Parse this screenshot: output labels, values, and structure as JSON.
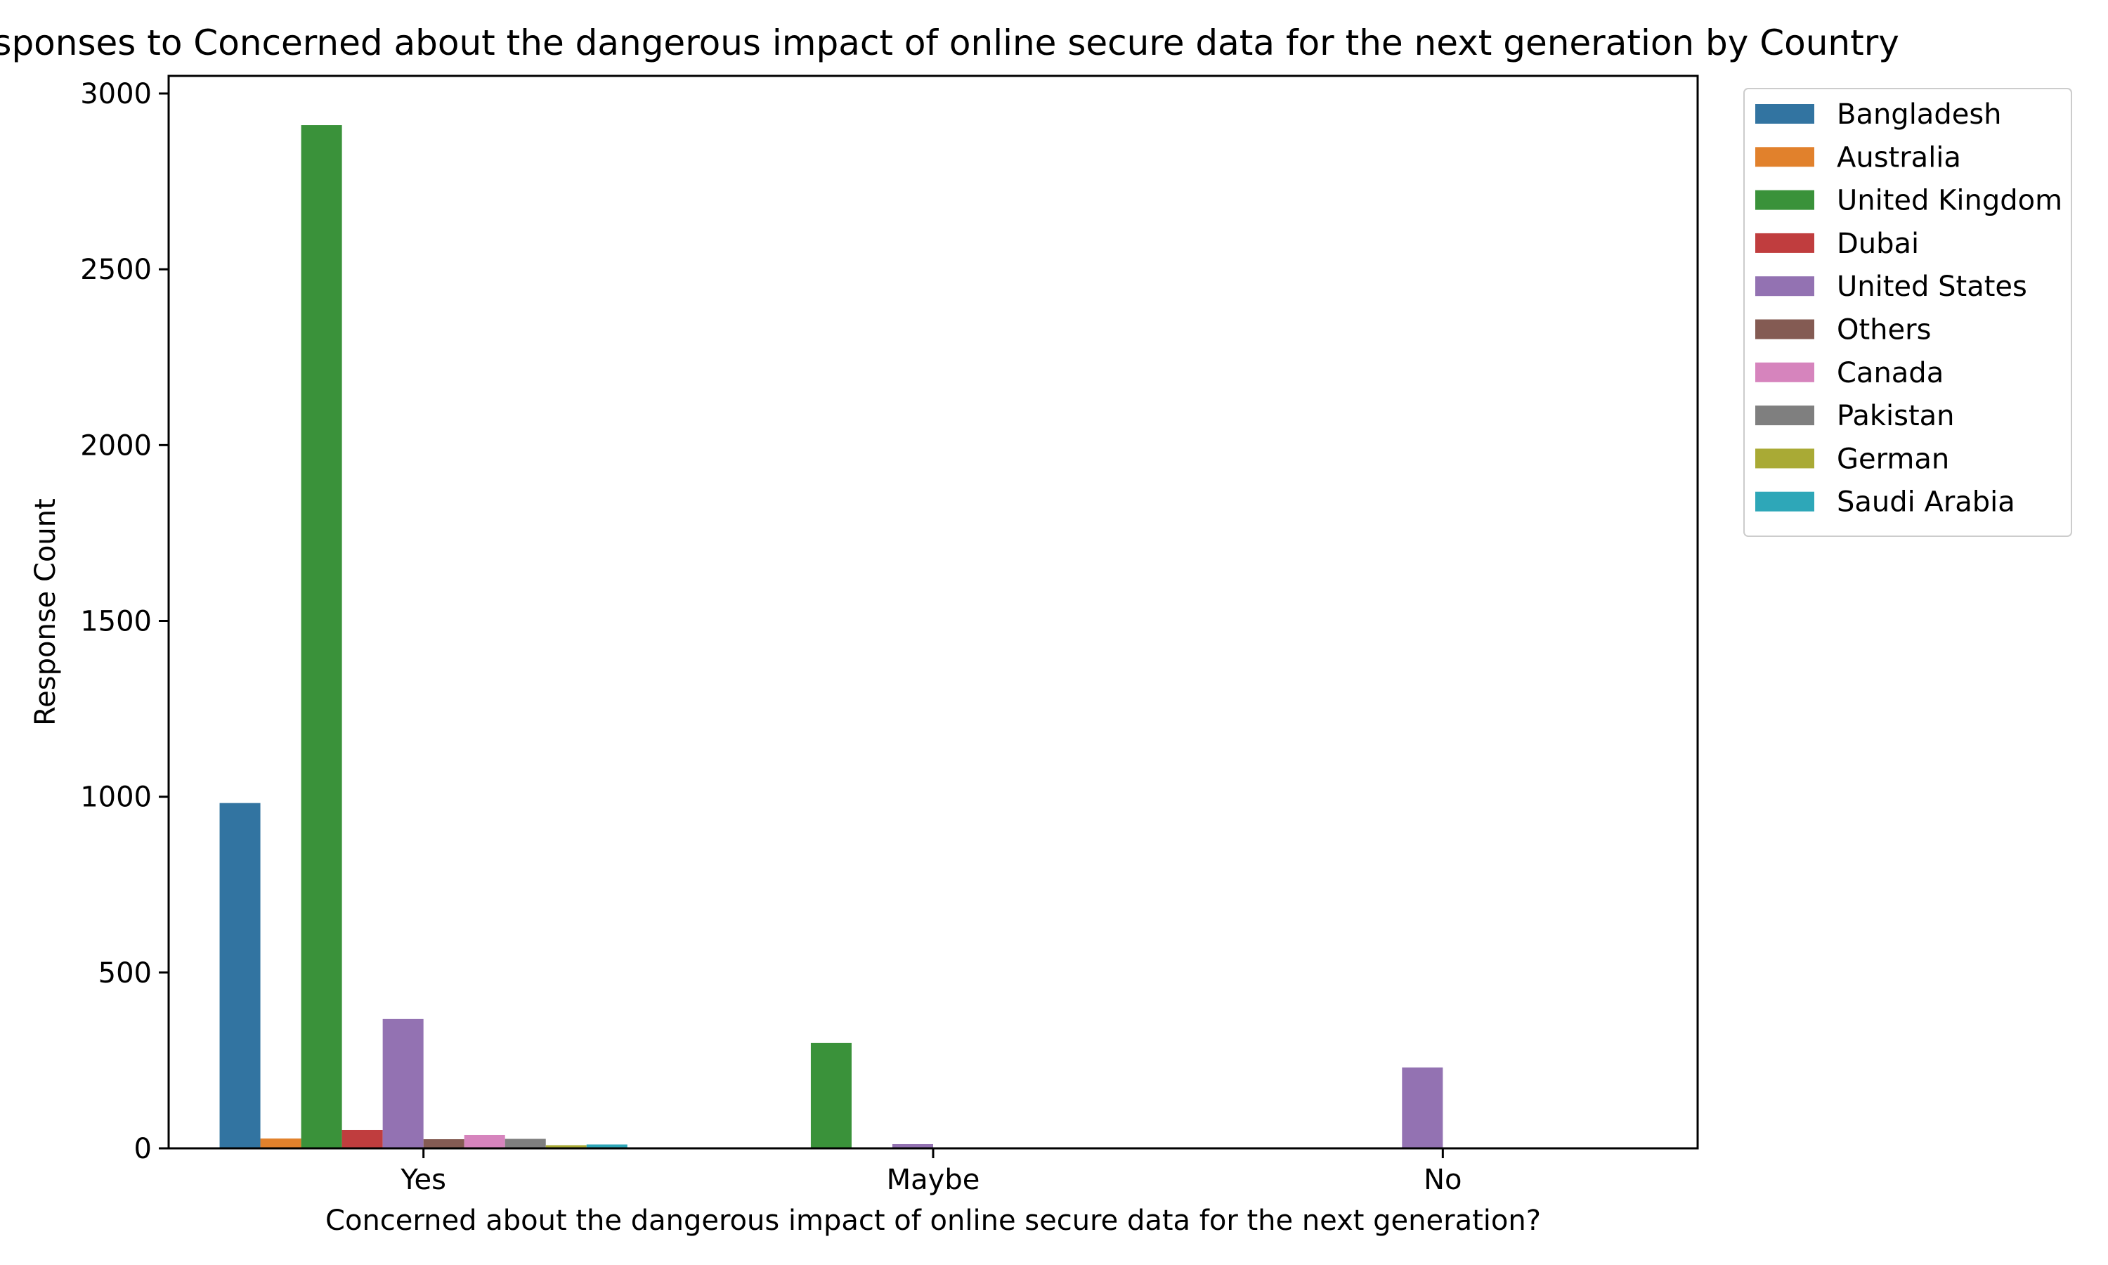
{
  "chart_data": {
    "type": "bar",
    "title": "Responses to Concerned about the dangerous impact of online secure data for the next generation by Country",
    "xlabel": "Concerned about the dangerous impact of online secure data for the next generation?",
    "ylabel": "Response Count",
    "categories": [
      "Yes",
      "Maybe",
      "No"
    ],
    "ylim": [
      0,
      3050
    ],
    "yticks": [
      0,
      500,
      1000,
      1500,
      2000,
      2500,
      3000
    ],
    "grid": false,
    "legend_position": "outside-top-right",
    "series": [
      {
        "name": "Bangladesh",
        "color": "#3274a1",
        "values": [
          982,
          0,
          0
        ]
      },
      {
        "name": "Australia",
        "color": "#e1812c",
        "values": [
          28,
          0,
          0
        ]
      },
      {
        "name": "United Kingdom",
        "color": "#3a923a",
        "values": [
          2910,
          300,
          0
        ]
      },
      {
        "name": "Dubai",
        "color": "#c03d3e",
        "values": [
          52,
          0,
          0
        ]
      },
      {
        "name": "United States",
        "color": "#9372b2",
        "values": [
          368,
          12,
          230
        ]
      },
      {
        "name": "Others",
        "color": "#845b53",
        "values": [
          26,
          0,
          0
        ]
      },
      {
        "name": "Canada",
        "color": "#d684bd",
        "values": [
          38,
          0,
          0
        ]
      },
      {
        "name": "Pakistan",
        "color": "#7f7f7f",
        "values": [
          27,
          0,
          0
        ]
      },
      {
        "name": "German",
        "color": "#a9aa35",
        "values": [
          9,
          0,
          0
        ]
      },
      {
        "name": "Saudi Arabia",
        "color": "#2ea7b8",
        "values": [
          11,
          0,
          0
        ]
      }
    ]
  }
}
